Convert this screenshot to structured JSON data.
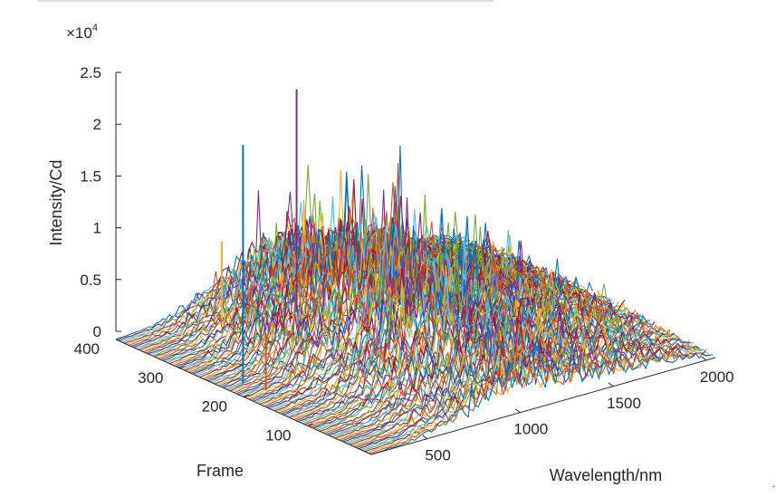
{
  "chart_data": {
    "type": "area",
    "title": "",
    "xlabel": "Wavelength/nm",
    "ylabel": "Frame",
    "zlabel": "Intensity/Cd",
    "z_exponent": "×10",
    "z_exponent_power": "4",
    "xlim": [
      200,
      2050
    ],
    "ylim": [
      0,
      400
    ],
    "zlim": [
      0,
      25000
    ],
    "x_ticks": [
      500,
      1000,
      1500,
      2000
    ],
    "y_ticks": [
      100,
      200,
      300,
      400
    ],
    "z_ticks": [
      0,
      0.5,
      1,
      1.5,
      2,
      2.5
    ],
    "x_tick_labels": [
      "500",
      "1000",
      "1500",
      "2000"
    ],
    "y_tick_labels": [
      "100",
      "200",
      "300",
      "400"
    ],
    "z_tick_labels": [
      "0",
      "0.5",
      "1",
      "1.5",
      "2",
      "2.5"
    ],
    "grid": false,
    "series_description_values": {
      "frames": 400,
      "wavelength_range_nm": [
        200,
        2050
      ],
      "spectral_peak_envelope": [
        [
          200,
          0
        ],
        [
          400,
          500
        ],
        [
          500,
          1500
        ],
        [
          700,
          4000
        ],
        [
          850,
          6500
        ],
        [
          950,
          8500
        ],
        [
          1050,
          8000
        ],
        [
          1150,
          7000
        ],
        [
          1300,
          5500
        ],
        [
          1500,
          4500
        ],
        [
          1700,
          3500
        ],
        [
          1900,
          2000
        ],
        [
          2050,
          1000
        ]
      ],
      "spike_peaks": [
        {
          "wavelength": 300,
          "frame": 230,
          "value": 23000
        },
        {
          "wavelength": 320,
          "frame": 200,
          "value": 5500
        },
        {
          "wavelength": 700,
          "frame": 380,
          "value": 7500
        },
        {
          "wavelength": 1000,
          "frame": 350,
          "value": 21500
        }
      ]
    },
    "colors": [
      "#0072bd",
      "#d95319",
      "#edb120",
      "#7e2f8e",
      "#77ac30",
      "#4dbeee",
      "#a2142f"
    ]
  }
}
